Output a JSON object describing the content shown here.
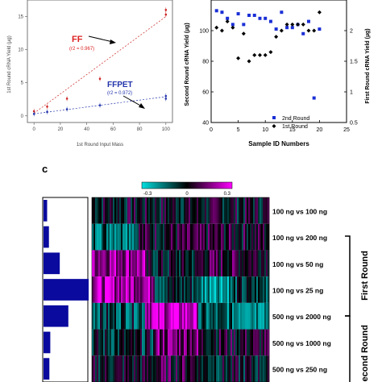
{
  "chart_data": [
    {
      "type": "scatter",
      "panel": "left",
      "xlabel": "1st Round Input Mass",
      "ylabel": "1st Round cRNA Yield (µg)",
      "xlim": [
        -5,
        105
      ],
      "ylim": [
        -1,
        17.5
      ],
      "xticks": [
        "0",
        "20",
        "40",
        "60",
        "80",
        "100"
      ],
      "yticks": [
        "0",
        "5",
        "10",
        "15"
      ],
      "series": [
        {
          "name": "FF",
          "color": "#cc2222",
          "annotation": "(r2 = 0.967)",
          "points": [
            [
              0,
              0.7
            ],
            [
              10,
              1.4
            ],
            [
              25,
              2.6
            ],
            [
              50,
              5.6
            ],
            [
              100,
              15.3
            ],
            [
              100,
              16.0
            ]
          ],
          "fit": [
            [
              0,
              0.4
            ],
            [
              100,
              15.0
            ]
          ]
        },
        {
          "name": "FFPET",
          "color": "#2233aa",
          "annotation": "(r2 = 0.972)",
          "points": [
            [
              0,
              0.3
            ],
            [
              10,
              0.6
            ],
            [
              25,
              1.0
            ],
            [
              50,
              1.6
            ],
            [
              100,
              2.6
            ],
            [
              100,
              3.0
            ]
          ],
          "fit": [
            [
              0,
              0.3
            ],
            [
              100,
              2.9
            ]
          ]
        }
      ]
    },
    {
      "type": "scatter",
      "panel": "right",
      "xlabel": "Sample ID Numbers",
      "ylabel": "Second Round cRNA Yield (µg)",
      "ylabel_right": "First Round cRNA Yield (µg)",
      "xlim": [
        0,
        25
      ],
      "ylim": [
        40,
        120
      ],
      "ylim_right": [
        0.5,
        2.5
      ],
      "xticks": [
        "0",
        "5",
        "10",
        "15",
        "20",
        "25"
      ],
      "yticks": [
        "100",
        "80",
        "60",
        "40"
      ],
      "yticks_right": [
        "2",
        "1.5",
        "1",
        "0.5"
      ],
      "legend": [
        "2nd Round",
        "1st Round"
      ],
      "legend_position": "bottom-right",
      "series": [
        {
          "name": "2nd Round",
          "marker": "square",
          "color": "#1a2fd6",
          "axis": "left",
          "points": [
            [
              1,
              113
            ],
            [
              2,
              112
            ],
            [
              3,
              108
            ],
            [
              4,
              104
            ],
            [
              5,
              111
            ],
            [
              6,
              104
            ],
            [
              7,
              110
            ],
            [
              8,
              110
            ],
            [
              9,
              108
            ],
            [
              10,
              108
            ],
            [
              11,
              106
            ],
            [
              12,
              101
            ],
            [
              13,
              112
            ],
            [
              14,
              102
            ],
            [
              15,
              102
            ],
            [
              16,
              104
            ],
            [
              17,
              98
            ],
            [
              18,
              106
            ],
            [
              19,
              56
            ],
            [
              20,
              101
            ]
          ]
        },
        {
          "name": "1st Round",
          "marker": "diamond",
          "color": "#000000",
          "axis": "right",
          "points": [
            [
              1,
              2.05
            ],
            [
              2,
              2.0
            ],
            [
              3,
              2.15
            ],
            [
              4,
              2.05
            ],
            [
              5,
              1.55
            ],
            [
              6,
              1.95
            ],
            [
              7,
              1.5
            ],
            [
              8,
              1.6
            ],
            [
              9,
              1.6
            ],
            [
              10,
              1.6
            ],
            [
              11,
              1.65
            ],
            [
              12,
              1.9
            ],
            [
              13,
              2.0
            ],
            [
              14,
              2.1
            ],
            [
              15,
              2.1
            ],
            [
              16,
              2.1
            ],
            [
              17,
              2.1
            ],
            [
              18,
              2.0
            ],
            [
              19,
              2.0
            ],
            [
              20,
              2.3
            ]
          ]
        }
      ]
    },
    {
      "type": "heatmap",
      "panel": "c",
      "colorbar_ticks": [
        "-0.3",
        "0",
        "0.3"
      ],
      "rows": [
        "100 ng vs 100 ng",
        "100 ng vs 200 ng",
        "100 ng vs 50 ng",
        "100 ng vs 25 ng",
        "500 ng vs 2000 ng",
        "500 ng vs 1000 ng",
        "500 ng vs 250 ng"
      ],
      "row_bar_values": [
        0.08,
        0.12,
        0.36,
        1.0,
        0.55,
        0.15,
        0.13
      ],
      "groups": [
        "First Round",
        "Second Round"
      ]
    }
  ],
  "panel_label": "c"
}
